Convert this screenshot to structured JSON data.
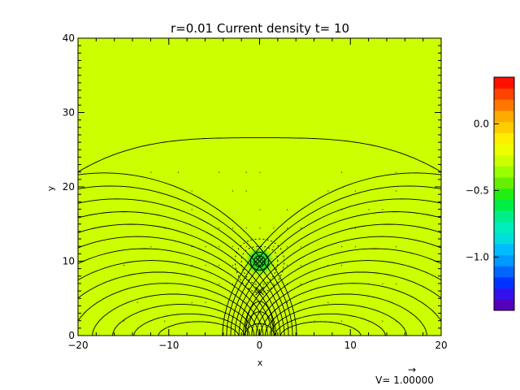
{
  "chart_data": {
    "type": "heatmap",
    "title": "r=0.01 Current density t= 10",
    "xlabel": "x",
    "ylabel": "y",
    "xlim": [
      -20,
      20
    ],
    "ylim": [
      0,
      40
    ],
    "x_ticks": [
      -20,
      -10,
      0,
      10,
      20
    ],
    "x_tick_labels": [
      "−20",
      "−10",
      "0",
      "10",
      "20"
    ],
    "y_ticks": [
      0,
      10,
      20,
      30,
      40
    ],
    "y_tick_labels": [
      "0",
      "10",
      "20",
      "30",
      "40"
    ],
    "background_color": "#ccff00",
    "blob": {
      "x": 0,
      "y": 10,
      "radius": 1.7,
      "color_center": "#22dd22",
      "color_edge": "#99ee00"
    },
    "markers": [
      {
        "symbol": "x",
        "x": 0,
        "y": 10
      },
      {
        "symbol": "x",
        "x": 0,
        "y": 6
      }
    ],
    "contour_levels_count": 14,
    "colorbar": {
      "min": -1.4,
      "max": 0.35,
      "ticks": [
        0.0,
        -0.5,
        -1.0
      ],
      "tick_labels": [
        "0.0",
        "−0.5",
        "−1.0"
      ],
      "colors": [
        "#5500bb",
        "#3311ee",
        "#0033ff",
        "#0066ff",
        "#0099ff",
        "#00bbff",
        "#00dddd",
        "#00eebb",
        "#00ee88",
        "#00ee44",
        "#22ee11",
        "#66ee00",
        "#99ff00",
        "#ccff00",
        "#eeff00",
        "#ffee00",
        "#ffcc00",
        "#ffaa00",
        "#ff7700",
        "#ff4400",
        "#ff1100"
      ]
    },
    "vector_reference_label": "V= 1.00000",
    "vector_reference_arrow": "→"
  }
}
